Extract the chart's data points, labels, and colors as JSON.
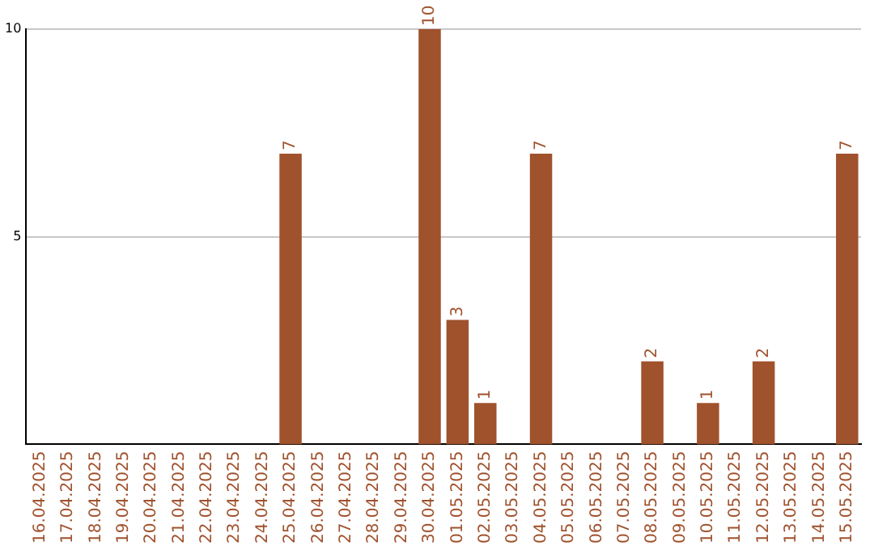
{
  "chart_data": {
    "type": "bar",
    "categories": [
      "16.04.2025",
      "17.04.2025",
      "18.04.2025",
      "19.04.2025",
      "20.04.2025",
      "21.04.2025",
      "22.04.2025",
      "23.04.2025",
      "24.04.2025",
      "25.04.2025",
      "26.04.2025",
      "27.04.2025",
      "28.04.2025",
      "29.04.2025",
      "30.04.2025",
      "01.05.2025",
      "02.05.2025",
      "03.05.2025",
      "04.05.2025",
      "05.05.2025",
      "06.05.2025",
      "07.05.2025",
      "08.05.2025",
      "09.05.2025",
      "10.05.2025",
      "11.05.2025",
      "12.05.2025",
      "13.05.2025",
      "14.05.2025",
      "15.05.2025"
    ],
    "values": [
      null,
      null,
      null,
      null,
      null,
      null,
      null,
      null,
      null,
      7,
      null,
      null,
      null,
      null,
      10,
      3,
      1,
      null,
      7,
      null,
      null,
      null,
      2,
      null,
      1,
      null,
      2,
      null,
      null,
      7
    ],
    "color": "#a0522d",
    "ylim": [
      0,
      10
    ],
    "yticks": [
      5,
      10
    ],
    "grid": "y",
    "data_labels": true,
    "legend": false
  }
}
